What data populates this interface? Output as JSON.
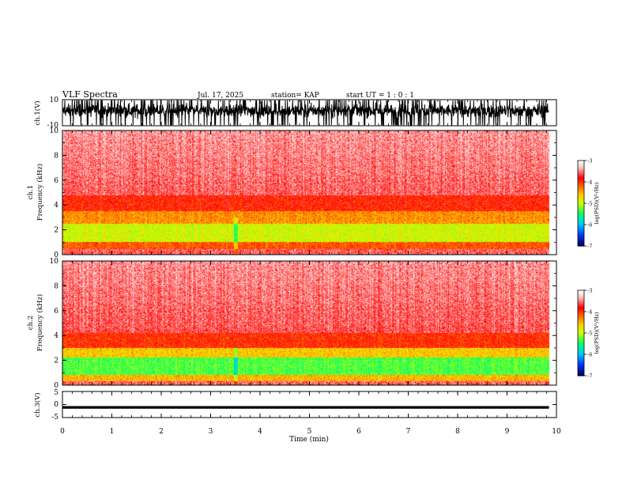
{
  "header": {
    "title": "VLF Spectra",
    "date": "Jul. 17, 2025",
    "station": "station= KAP",
    "start": "start  UT =   1 : 0  : 1"
  },
  "chart_data": [
    {
      "name": "ch1-waveform",
      "type": "line",
      "ylabel": "ch.1(V)",
      "ylim": [
        -10,
        10
      ],
      "yticks": [
        "10",
        "-10"
      ],
      "xlim": [
        0,
        10
      ],
      "x_data_end": 9.85,
      "signal": "dense noise filling most of the range"
    },
    {
      "name": "ch1-spectrogram",
      "type": "heatmap",
      "ylabel": "ch.1\nFrequency (kHz)",
      "ylim": [
        0,
        10
      ],
      "yticks": [
        "0",
        "2",
        "4",
        "6",
        "8",
        "10"
      ],
      "xlim": [
        0,
        10
      ],
      "x_data_end": 9.85,
      "colorbar": {
        "label": "log(PSD)(V²/Hz)",
        "range": [
          -7,
          -3
        ],
        "ticks": [
          "-3",
          "-4",
          "-5",
          "-6",
          "-7"
        ]
      },
      "profile": "strong yellow/green band 1-2.5 kHz, red up to ~4.5 kHz, pale red above",
      "bright_time_min": 3.5
    },
    {
      "name": "ch2-spectrogram",
      "type": "heatmap",
      "ylabel": "ch.2\nFrequency (kHz)",
      "ylim": [
        0,
        10
      ],
      "yticks": [
        "0",
        "2",
        "4",
        "6",
        "8",
        "10"
      ],
      "xlim": [
        0,
        10
      ],
      "x_data_end": 9.85,
      "colorbar": {
        "label": "log(PSD)(V²/Hz)",
        "range": [
          -7,
          -3
        ],
        "ticks": [
          "-3",
          "-4",
          "-5",
          "-6",
          "-7"
        ]
      },
      "profile": "green/yellow band 0.5-2.5 kHz, red up to ~4 kHz, pale red above",
      "bright_time_min": 3.5
    },
    {
      "name": "ch3-waveform",
      "type": "line",
      "ylabel": "ch.3(V)",
      "ylim": [
        -5,
        5
      ],
      "yticks": [
        "5",
        "0",
        "-5"
      ],
      "xlim": [
        0,
        10
      ],
      "x_data_end": 9.85,
      "signal": "narrow band near -1 V"
    }
  ],
  "xaxis": {
    "label": "Time (min)",
    "ticks": [
      "0",
      "1",
      "2",
      "3",
      "4",
      "5",
      "6",
      "7",
      "8",
      "9",
      "10"
    ]
  },
  "colors": {
    "colormap": [
      "#000066",
      "#0033ff",
      "#00ccff",
      "#00ff66",
      "#ccff00",
      "#ffcc00",
      "#ff6600",
      "#ff0000",
      "#ffcccc",
      "#ffffff"
    ]
  }
}
